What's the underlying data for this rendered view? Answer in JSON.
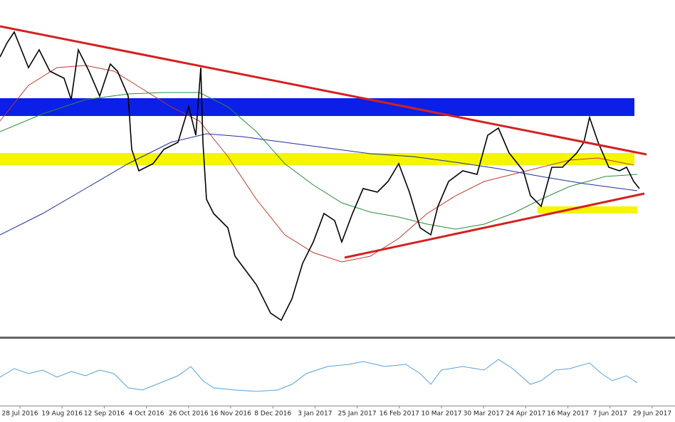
{
  "axis": {
    "dates": [
      "28 Jul 2016",
      "19 Aug 2016",
      "12 Sep 2016",
      "4 Oct 2016",
      "26 Oct 2016",
      "16 Nov 2016",
      "8 Dec 2016",
      "3 Jan 2017",
      "25 Jan 2017",
      "16 Feb 2017",
      "10 Mar 2017",
      "30 Mar 2017",
      "24 Apr 2017",
      "16 May 2017",
      "7 Jun 2017",
      "29 Jun 2017"
    ]
  }
}
